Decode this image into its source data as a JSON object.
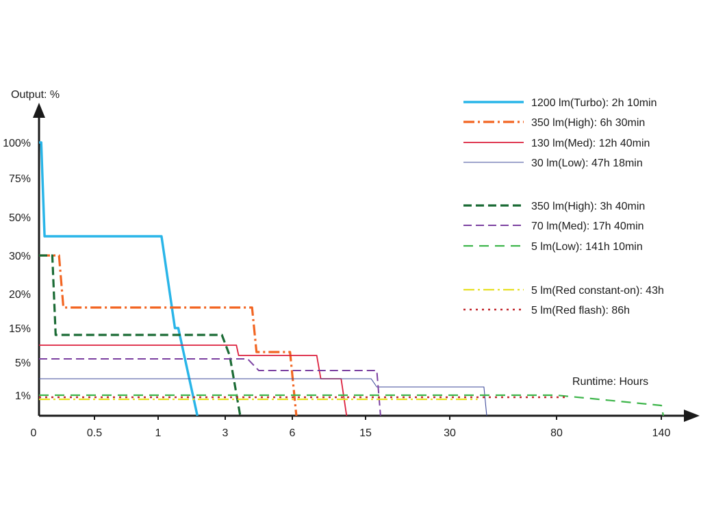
{
  "chart_data": {
    "type": "line",
    "step": true,
    "ylabel": "Output: %",
    "xlabel": "Runtime: Hours",
    "y_ticks": [
      "100%",
      "75%",
      "50%",
      "30%",
      "20%",
      "15%",
      "5%",
      "1%"
    ],
    "x_ticks": [
      "0",
      "0.5",
      "1",
      "3",
      "6",
      "15",
      "30",
      "80",
      "140"
    ],
    "y_ticks_values": [
      100,
      75,
      50,
      30,
      20,
      15,
      5,
      1
    ],
    "grid": false,
    "legend_position": "top-right",
    "series": [
      {
        "name": "1200 lm(Turbo): 2h 10min",
        "color": "#29b5e8",
        "dash": "solid",
        "points": [
          [
            0,
            100
          ],
          [
            0.02,
            100
          ],
          [
            0.05,
            40
          ],
          [
            1.1,
            40
          ],
          [
            1.5,
            15
          ],
          [
            1.6,
            15
          ],
          [
            2.17,
            0
          ]
        ]
      },
      {
        "name": "350 lm(High): 6h 30min",
        "color": "#f26522",
        "dash": "dashdot",
        "points": [
          [
            0,
            30
          ],
          [
            0.18,
            30
          ],
          [
            0.22,
            18
          ],
          [
            4.2,
            18
          ],
          [
            4.4,
            8
          ],
          [
            5.9,
            8
          ],
          [
            6.5,
            0
          ]
        ]
      },
      {
        "name": "130 lm(Med): 12h 40min",
        "color": "#dc1f3c",
        "dash": "solid",
        "points": [
          [
            0,
            10
          ],
          [
            3.5,
            10
          ],
          [
            3.6,
            7
          ],
          [
            9.0,
            7
          ],
          [
            9.5,
            3
          ],
          [
            12.0,
            3
          ],
          [
            12.67,
            0
          ]
        ]
      },
      {
        "name": "30 lm(Low): 47h 18min",
        "color": "#3d4a9a",
        "dash": "solid",
        "points": [
          [
            0,
            3
          ],
          [
            16.0,
            3
          ],
          [
            17.0,
            2
          ],
          [
            46.0,
            2
          ],
          [
            47.3,
            0
          ]
        ]
      },
      {
        "name": "350 lm(High): 3h 40min",
        "color": "#1b6b35",
        "dash": "dash",
        "points": [
          [
            0,
            30
          ],
          [
            0.12,
            30
          ],
          [
            0.15,
            13
          ],
          [
            2.9,
            13
          ],
          [
            3.2,
            7
          ],
          [
            3.67,
            0
          ]
        ]
      },
      {
        "name": "70 lm(Med): 17h 40min",
        "color": "#7a3fa0",
        "dash": "dash",
        "points": [
          [
            0,
            6
          ],
          [
            4.0,
            6
          ],
          [
            4.5,
            4
          ],
          [
            17.0,
            4
          ],
          [
            17.67,
            0
          ]
        ]
      },
      {
        "name": "5 lm(Low): 141h 10min",
        "color": "#3db54a",
        "dash": "longdash",
        "points": [
          [
            0,
            1
          ],
          [
            80,
            1
          ],
          [
            140,
            0.5
          ],
          [
            141.17,
            0
          ]
        ]
      },
      {
        "name": "5 lm(Red constant-on): 43h",
        "color": "#e6e020",
        "dash": "dashdot",
        "points": [
          [
            0,
            0.8
          ],
          [
            43,
            0.8
          ]
        ]
      },
      {
        "name": "5 lm(Red flash): 86h",
        "color": "#c1272d",
        "dash": "dot",
        "points": [
          [
            0,
            0.9
          ],
          [
            86,
            0.9
          ]
        ]
      }
    ]
  }
}
